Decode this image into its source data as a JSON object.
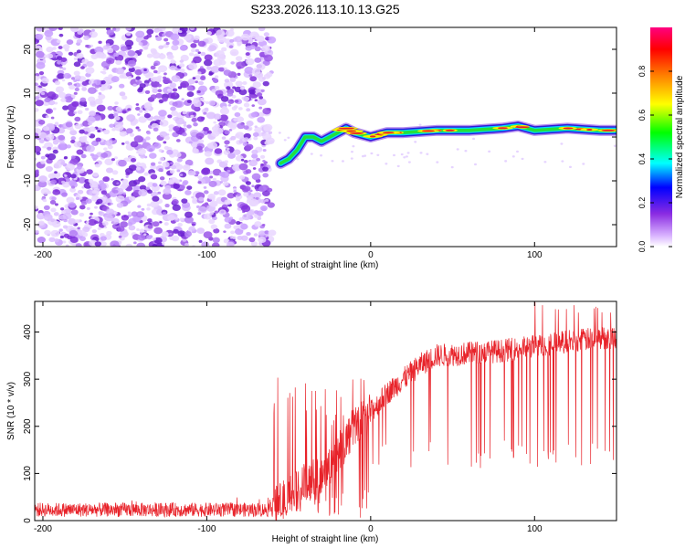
{
  "title": "S233.2026.113.10.13.G25",
  "chart_data": [
    {
      "type": "heatmap",
      "name": "spectrogram",
      "xlabel": "Height of straight line (km)",
      "ylabel": "Frequency (Hz)",
      "xlim": [
        -205,
        150
      ],
      "ylim": [
        -25,
        25
      ],
      "xticks": [
        -200,
        -100,
        0,
        100
      ],
      "yticks": [
        -20,
        -10,
        0,
        10,
        20
      ],
      "tick_labels_x": [
        "-200",
        "-100",
        "0",
        "100"
      ],
      "tick_labels_y": [
        "-20",
        "-10",
        "0",
        "10",
        "20"
      ],
      "noise_region_x": [
        -205,
        -60
      ],
      "signal_track": [
        {
          "x": -55,
          "f": -6
        },
        {
          "x": -50,
          "f": -5
        },
        {
          "x": -45,
          "f": -3
        },
        {
          "x": -40,
          "f": 0
        },
        {
          "x": -35,
          "f": 0
        },
        {
          "x": -30,
          "f": -1
        },
        {
          "x": -20,
          "f": 1
        },
        {
          "x": -15,
          "f": 2
        },
        {
          "x": -10,
          "f": 1
        },
        {
          "x": 0,
          "f": 0
        },
        {
          "x": 10,
          "f": 1
        },
        {
          "x": 20,
          "f": 1
        },
        {
          "x": 40,
          "f": 1.5
        },
        {
          "x": 60,
          "f": 1.5
        },
        {
          "x": 80,
          "f": 2
        },
        {
          "x": 90,
          "f": 2.5
        },
        {
          "x": 100,
          "f": 1.5
        },
        {
          "x": 120,
          "f": 2
        },
        {
          "x": 140,
          "f": 1.5
        },
        {
          "x": 150,
          "f": 1.5
        }
      ]
    },
    {
      "type": "colorbar",
      "name": "amplitude-colorbar",
      "label": "Normalized spectral amplitude",
      "range": [
        0,
        1
      ],
      "ticks": [
        0.0,
        0.2,
        0.4,
        0.6,
        0.8
      ],
      "tick_labels": [
        "0.0",
        "0.2",
        "0.4",
        "0.6",
        "0.8"
      ],
      "colors": [
        "#ffffff",
        "#8a2be2",
        "#0000ff",
        "#00ffff",
        "#00ff00",
        "#ffff00",
        "#ff8000",
        "#ff0000",
        "#ff0080"
      ]
    },
    {
      "type": "line",
      "name": "snr",
      "xlabel": "Height of straight line (km)",
      "ylabel": "SNR (10 * v/v)",
      "xlim": [
        -205,
        150
      ],
      "ylim": [
        0,
        465
      ],
      "xticks": [
        -200,
        -100,
        0,
        100
      ],
      "yticks": [
        0,
        100,
        200,
        300,
        400
      ],
      "tick_labels_x": [
        "-200",
        "-100",
        "0",
        "100"
      ],
      "tick_labels_y": [
        "0",
        "100",
        "200",
        "300",
        "400"
      ],
      "color": "#e8232a",
      "trend": [
        {
          "x": -205,
          "y": 25
        },
        {
          "x": -60,
          "y": 25
        },
        {
          "x": -46,
          "y": 60
        },
        {
          "x": -40,
          "y": 80
        },
        {
          "x": -30,
          "y": 100
        },
        {
          "x": -20,
          "y": 140
        },
        {
          "x": -10,
          "y": 200
        },
        {
          "x": 0,
          "y": 230
        },
        {
          "x": 10,
          "y": 270
        },
        {
          "x": 20,
          "y": 300
        },
        {
          "x": 30,
          "y": 330
        },
        {
          "x": 40,
          "y": 350
        },
        {
          "x": 60,
          "y": 355
        },
        {
          "x": 80,
          "y": 360
        },
        {
          "x": 100,
          "y": 370
        },
        {
          "x": 120,
          "y": 380
        },
        {
          "x": 150,
          "y": 390
        }
      ]
    }
  ]
}
